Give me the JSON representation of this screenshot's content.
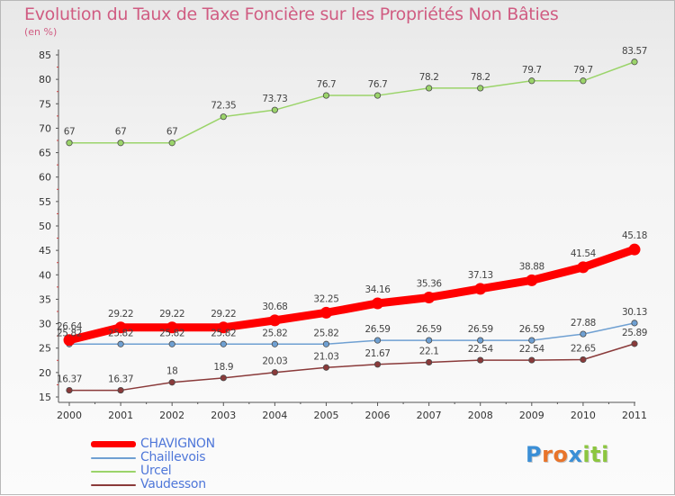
{
  "header": {
    "title": "Evolution du Taux de Taxe Foncière sur les Propriétés Non Bâties",
    "unit": "(en %)"
  },
  "colors": {
    "title": "#d05c82",
    "legend_text": "#4f77d9",
    "axis": "#555555"
  },
  "chart_data": {
    "type": "line",
    "title": "Evolution du Taux de Taxe Foncière sur les Propriétés Non Bâties",
    "ylabel": "(en %)",
    "xlabel": "",
    "x": [
      "2000",
      "2001",
      "2002",
      "2003",
      "2004",
      "2005",
      "2006",
      "2007",
      "2008",
      "2009",
      "2010",
      "2011"
    ],
    "ylim": [
      15,
      85
    ],
    "yticks": [
      "15",
      "20",
      "25",
      "30",
      "35",
      "40",
      "45",
      "50",
      "55",
      "60",
      "65",
      "70",
      "75",
      "80",
      "85"
    ],
    "grid": false,
    "legend_position": "bottom-left",
    "series": [
      {
        "name": "CHAVIGNON",
        "color": "#ff0000",
        "emphasis": true,
        "values": [
          26.64,
          29.22,
          29.22,
          29.22,
          30.68,
          32.25,
          34.16,
          35.36,
          37.13,
          38.88,
          41.54,
          45.18
        ],
        "labels": [
          "26.64",
          "29.22",
          "29.22",
          "29.22",
          "30.68",
          "32.25",
          "34.16",
          "35.36",
          "37.13",
          "38.88",
          "41.54",
          "45.18"
        ]
      },
      {
        "name": "Chaillevois",
        "color": "#6fa0d2",
        "emphasis": false,
        "values": [
          25.82,
          25.82,
          25.82,
          25.82,
          25.82,
          25.82,
          26.59,
          26.59,
          26.59,
          26.59,
          27.88,
          30.13
        ],
        "labels": [
          "25.82",
          "25.82",
          "25.82",
          "25.82",
          "25.82",
          "25.82",
          "26.59",
          "26.59",
          "26.59",
          "26.59",
          "27.88",
          "30.13"
        ]
      },
      {
        "name": "Urcel",
        "color": "#9bd46a",
        "emphasis": false,
        "values": [
          67,
          67,
          67,
          72.35,
          73.73,
          76.7,
          76.7,
          78.2,
          78.2,
          79.7,
          79.7,
          83.57
        ],
        "labels": [
          "67",
          "67",
          "67",
          "72.35",
          "73.73",
          "76.7",
          "76.7",
          "78.2",
          "78.2",
          "79.7",
          "79.7",
          "83.57"
        ]
      },
      {
        "name": "Vaudesson",
        "color": "#8a3a3a",
        "emphasis": false,
        "values": [
          16.37,
          16.37,
          18,
          18.9,
          20.03,
          21.03,
          21.67,
          22.1,
          22.54,
          22.54,
          22.65,
          25.89
        ],
        "labels": [
          "16.37",
          "16.37",
          "18",
          "18.9",
          "20.03",
          "21.03",
          "21.67",
          "22.1",
          "22.54",
          "22.54",
          "22.65",
          "25.89"
        ]
      }
    ]
  },
  "logo": {
    "letters": [
      "P",
      "r",
      "o",
      "x",
      "i",
      "t",
      "i"
    ],
    "colors": [
      "#3b8fd6",
      "#e8742a",
      "#e8742a",
      "#3b8fd6",
      "#8cc63f",
      "#8cc63f",
      "#8cc63f"
    ]
  }
}
